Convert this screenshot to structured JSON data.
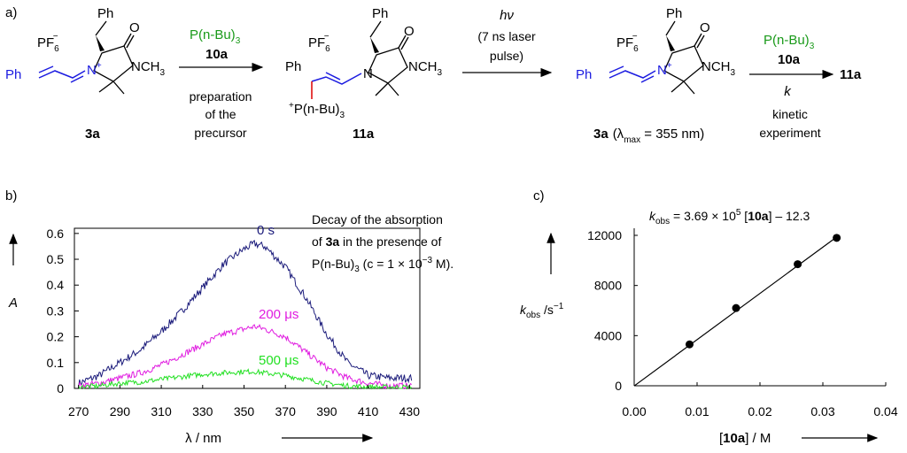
{
  "panels": {
    "a": "a)",
    "b": "b)",
    "c": "c)"
  },
  "scheme": {
    "counterion": "PF",
    "counterion_sub": "6",
    "counterion_sup": "−",
    "ph": "Ph",
    "ncation": "N",
    "plus": "+",
    "n_label": "N",
    "nch3": "NCH",
    "ch3_sub": "3",
    "oxo": "O",
    "reagent": "P(n-Bu)",
    "reagent_sub": "3",
    "reagent_num": "10a",
    "step1_note": [
      "preparation",
      "of the",
      "precursor"
    ],
    "comp_3a": "3a",
    "comp_11a": "11a",
    "phos_plus": "+",
    "phos": "P(n-Bu)",
    "phos_sub": "3",
    "hv": "hν",
    "laser": [
      "(7 ns laser",
      "pulse)"
    ],
    "lambda_note": "(λ",
    "lambda_sub": "max",
    "lambda_value": " = 355 nm)",
    "rate_k": "k",
    "step3_note": [
      "kinetic",
      "experiment"
    ],
    "product": "11a"
  },
  "spectrum": {
    "y_axis_label": "A",
    "x_axis_label": "λ / nm",
    "x_ticks": [
      "270",
      "290",
      "310",
      "330",
      "350",
      "370",
      "390",
      "410",
      "430"
    ],
    "y_ticks": [
      "0",
      "0.1",
      "0.2",
      "0.3",
      "0.4",
      "0.5",
      "0.6"
    ],
    "caption": [
      "Decay of the absorption",
      "of ",
      "3a",
      " in the presence of",
      "P(n-Bu)",
      "3",
      " (c = 1 × 10",
      "−3",
      " M)."
    ],
    "series_labels": [
      "0 s",
      "200 μs",
      "500 μs"
    ]
  },
  "kinetics": {
    "equation": [
      "k",
      "obs",
      " = 3.69 × 10",
      "5",
      " [",
      "10a",
      "] – 12.3"
    ],
    "y_axis_label": [
      "k",
      "obs",
      "  /s",
      "−1"
    ],
    "x_axis_label": [
      "[",
      "10a",
      "] / M"
    ],
    "x_ticks": [
      "0.00",
      "0.01",
      "0.02",
      "0.03",
      "0.04"
    ],
    "y_ticks": [
      "0",
      "4000",
      "8000",
      "12000"
    ]
  },
  "chart_data": [
    {
      "type": "line",
      "title": "Decay of the absorption of 3a in the presence of P(n-Bu)3 (c = 1 × 10−3 M).",
      "xlabel": "λ / nm",
      "ylabel": "A",
      "xlim": [
        268,
        435
      ],
      "ylim": [
        0,
        0.62
      ],
      "x": [
        270,
        280,
        290,
        300,
        310,
        320,
        330,
        340,
        350,
        355,
        360,
        370,
        380,
        390,
        400,
        410,
        420,
        430
      ],
      "series": [
        {
          "name": "0 s",
          "color": "#1a1a7a",
          "values": [
            0.02,
            0.05,
            0.1,
            0.15,
            0.22,
            0.3,
            0.39,
            0.48,
            0.54,
            0.56,
            0.55,
            0.47,
            0.35,
            0.21,
            0.1,
            0.05,
            0.04,
            0.04
          ]
        },
        {
          "name": "200 μs",
          "color": "#e01ce0",
          "values": [
            0.01,
            0.02,
            0.04,
            0.06,
            0.09,
            0.13,
            0.17,
            0.21,
            0.23,
            0.24,
            0.23,
            0.2,
            0.14,
            0.08,
            0.04,
            0.02,
            0.01,
            0.01
          ]
        },
        {
          "name": "500 μs",
          "color": "#22e022",
          "values": [
            0.005,
            0.01,
            0.02,
            0.025,
            0.035,
            0.045,
            0.055,
            0.06,
            0.065,
            0.065,
            0.06,
            0.05,
            0.035,
            0.02,
            0.01,
            0.005,
            0.005,
            0.005
          ]
        }
      ]
    },
    {
      "type": "scatter",
      "title": "kobs = 3.69 × 10^5 [10a] – 12.3",
      "xlabel": "[10a] / M",
      "ylabel": "kobs /s−1",
      "xlim": [
        0,
        0.04
      ],
      "ylim": [
        0,
        12000
      ],
      "points": [
        [
          0.0088,
          3300
        ],
        [
          0.0162,
          6200
        ],
        [
          0.026,
          9700
        ],
        [
          0.0322,
          11800
        ]
      ],
      "fit": {
        "slope": 369000,
        "intercept": -12.3
      }
    }
  ]
}
